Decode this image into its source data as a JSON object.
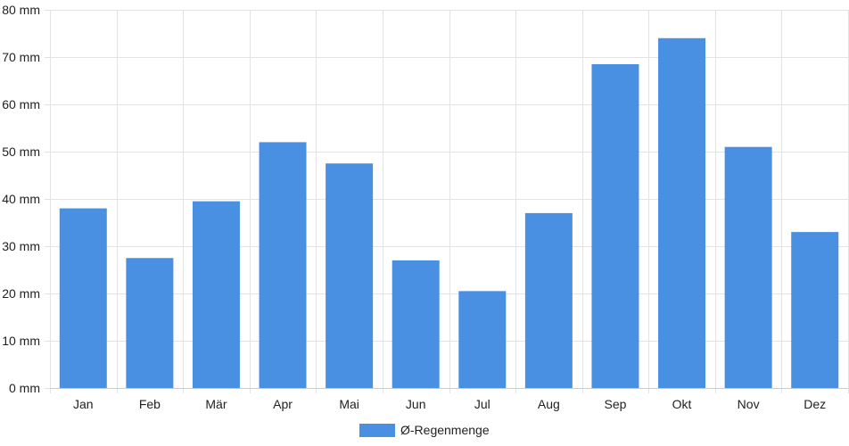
{
  "chart_data": {
    "type": "bar",
    "categories": [
      "Jan",
      "Feb",
      "Mär",
      "Apr",
      "Mai",
      "Jun",
      "Jul",
      "Aug",
      "Sep",
      "Okt",
      "Nov",
      "Dez"
    ],
    "series": [
      {
        "name": "Ø-Regenmenge",
        "values": [
          38,
          27.5,
          39.5,
          52,
          47.5,
          27,
          20.5,
          37,
          68.5,
          74,
          51,
          33
        ]
      }
    ],
    "ylim": [
      0,
      80
    ],
    "ytick_step": 10,
    "y_unit": "mm",
    "y_ticks": [
      "0 mm",
      "10 mm",
      "20 mm",
      "30 mm",
      "40 mm",
      "50 mm",
      "60 mm",
      "70 mm",
      "80 mm"
    ],
    "grid": true,
    "legend_position": "bottom-center",
    "colors": {
      "bar": "#4a90e2",
      "grid": "#e3e3e3",
      "axis": "#cccccc",
      "text": "#222222"
    }
  }
}
